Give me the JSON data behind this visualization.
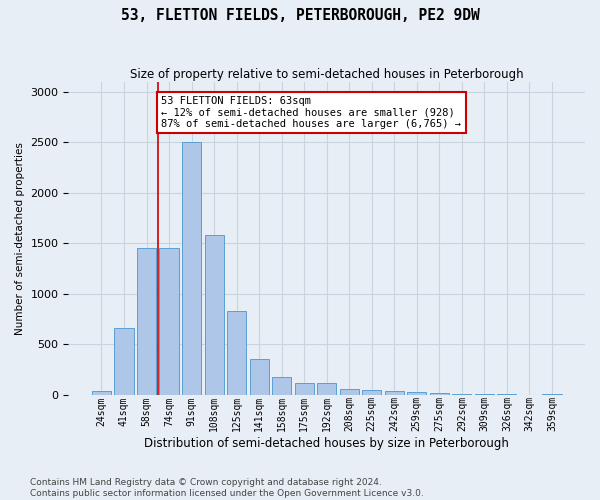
{
  "title": "53, FLETTON FIELDS, PETERBOROUGH, PE2 9DW",
  "subtitle": "Size of property relative to semi-detached houses in Peterborough",
  "xlabel": "Distribution of semi-detached houses by size in Peterborough",
  "ylabel": "Number of semi-detached properties",
  "footer_line1": "Contains HM Land Registry data © Crown copyright and database right 2024.",
  "footer_line2": "Contains public sector information licensed under the Open Government Licence v3.0.",
  "categories": [
    "24sqm",
    "41sqm",
    "58sqm",
    "74sqm",
    "91sqm",
    "108sqm",
    "125sqm",
    "141sqm",
    "158sqm",
    "175sqm",
    "192sqm",
    "208sqm",
    "225sqm",
    "242sqm",
    "259sqm",
    "275sqm",
    "292sqm",
    "309sqm",
    "326sqm",
    "342sqm",
    "359sqm"
  ],
  "values": [
    40,
    660,
    1450,
    1450,
    2500,
    1580,
    830,
    350,
    175,
    120,
    120,
    60,
    45,
    35,
    30,
    20,
    5,
    5,
    5,
    0,
    5
  ],
  "bar_color": "#aec6e8",
  "bar_edge_color": "#5a9fd4",
  "vline_color": "#cc0000",
  "vline_x": 2.5,
  "annotation_line1": "53 FLETTON FIELDS: 63sqm",
  "annotation_line2": "← 12% of semi-detached houses are smaller (928)",
  "annotation_line3": "87% of semi-detached houses are larger (6,765) →",
  "annotation_box_facecolor": "#ffffff",
  "annotation_box_edgecolor": "#cc0000",
  "ylim": [
    0,
    3100
  ],
  "yticks": [
    0,
    500,
    1000,
    1500,
    2000,
    2500,
    3000
  ],
  "grid_color": "#c8d4e0",
  "bg_color": "#e8eef5"
}
